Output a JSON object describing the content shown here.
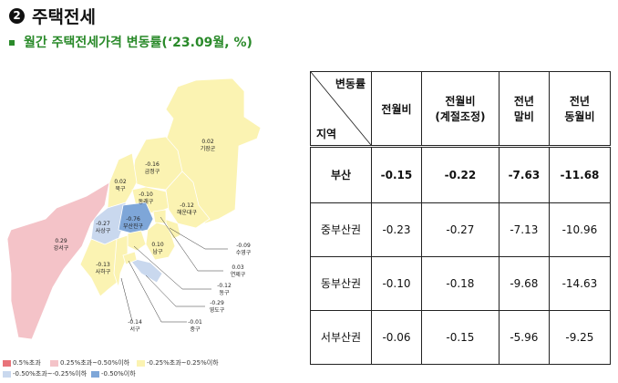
{
  "section": {
    "number": "2",
    "title": "주택전세"
  },
  "subtitle": "월간 주택전세가격 변동률(‘23.09월, %)",
  "colors": {
    "over_0_5": "#e8737a",
    "0_25_to_0_5": "#f4c3c8",
    "neutral": "#fbf3b2",
    "m0_5_to_m0_25": "#c9d8ee",
    "under_m0_5": "#7ea6d8",
    "subtitle_green": "#2a8a2a"
  },
  "map": {
    "districts": [
      {
        "name": "기장군",
        "value": "0.02"
      },
      {
        "name": "금정구",
        "value": "-0.16"
      },
      {
        "name": "북구",
        "value": "0.02"
      },
      {
        "name": "동래구",
        "value": "-0.10"
      },
      {
        "name": "해운대구",
        "value": "-0.12"
      },
      {
        "name": "사상구",
        "value": "-0.27"
      },
      {
        "name": "부산진구",
        "value": "-0.76"
      },
      {
        "name": "강서구",
        "value": "0.29"
      },
      {
        "name": "남구",
        "value": "0.10"
      },
      {
        "name": "사하구",
        "value": "-0.13"
      },
      {
        "name": "수영구",
        "value": "-0.09"
      },
      {
        "name": "연제구",
        "value": "0.03"
      },
      {
        "name": "동구",
        "value": "-0.12"
      },
      {
        "name": "영도구",
        "value": "-0.29"
      },
      {
        "name": "서구",
        "value": "-0.14"
      },
      {
        "name": "중구",
        "value": "-0.01"
      }
    ],
    "legend": [
      "0.5%초과",
      "0.25%초과~0.50%이하",
      "-0.25%초과~0.25%이하",
      "-0.50%초과~-0.25%이하",
      "-0.50%이하"
    ]
  },
  "table": {
    "corner_top": "변동률",
    "corner_bottom": "지역",
    "headers": [
      "전월비",
      "전월비\n(계절조정)",
      "전년\n말비",
      "전년\n동월비"
    ],
    "rows": [
      {
        "region": "부산",
        "values": [
          "-0.15",
          "-0.22",
          "-7.63",
          "-11.68"
        ]
      },
      {
        "region": "중부산권",
        "values": [
          "-0.23",
          "-0.27",
          "-7.13",
          "-10.96"
        ]
      },
      {
        "region": "동부산권",
        "values": [
          "-0.10",
          "-0.18",
          "-9.68",
          "-14.63"
        ]
      },
      {
        "region": "서부산권",
        "values": [
          "-0.06",
          "-0.15",
          "-5.96",
          "-9.25"
        ]
      }
    ]
  }
}
